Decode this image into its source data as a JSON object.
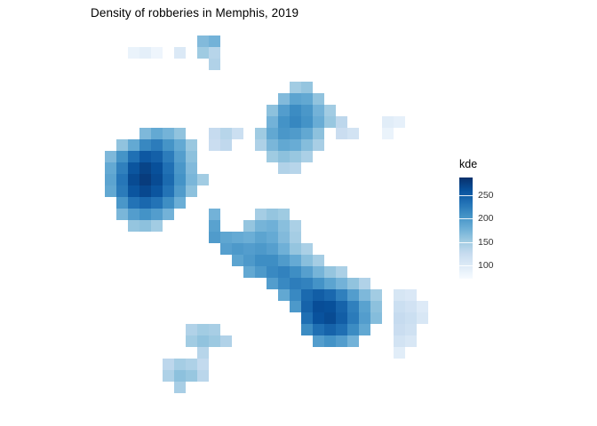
{
  "chart_data": {
    "type": "heatmap",
    "title": "Density of robberies in Memphis, 2019",
    "xlabel": "",
    "ylabel": "",
    "grid": false,
    "background": "#FFFFFF",
    "legend": {
      "title": "kde",
      "position": "right",
      "ticks": [
        250,
        200,
        150,
        100
      ]
    },
    "domain": [
      72,
      288
    ],
    "palette": [
      "#F7FBFF",
      "#DEEBF7",
      "#C6DBEF",
      "#9ECAE1",
      "#6BAED6",
      "#4292C6",
      "#2171B5",
      "#08519C",
      "#08306B"
    ],
    "cell": 13,
    "origin": [
      118,
      40
    ],
    "tiles": [
      [
        8,
        0,
        168
      ],
      [
        9,
        0,
        176
      ],
      [
        2,
        1,
        86
      ],
      [
        3,
        1,
        92
      ],
      [
        4,
        1,
        82
      ],
      [
        6,
        1,
        102
      ],
      [
        8,
        1,
        152
      ],
      [
        9,
        1,
        136
      ],
      [
        9,
        2,
        140
      ],
      [
        16,
        4,
        150
      ],
      [
        17,
        4,
        158
      ],
      [
        15,
        5,
        168
      ],
      [
        16,
        5,
        190
      ],
      [
        17,
        5,
        186
      ],
      [
        18,
        5,
        160
      ],
      [
        14,
        6,
        162
      ],
      [
        15,
        6,
        196
      ],
      [
        16,
        6,
        212
      ],
      [
        17,
        6,
        202
      ],
      [
        18,
        6,
        176
      ],
      [
        19,
        6,
        150
      ],
      [
        14,
        7,
        176
      ],
      [
        15,
        7,
        206
      ],
      [
        16,
        7,
        216
      ],
      [
        17,
        7,
        206
      ],
      [
        18,
        7,
        182
      ],
      [
        19,
        7,
        156
      ],
      [
        20,
        7,
        132
      ],
      [
        13,
        8,
        152
      ],
      [
        14,
        8,
        186
      ],
      [
        15,
        8,
        202
      ],
      [
        16,
        8,
        198
      ],
      [
        17,
        8,
        186
      ],
      [
        18,
        8,
        162
      ],
      [
        20,
        8,
        122
      ],
      [
        21,
        8,
        112
      ],
      [
        13,
        9,
        142
      ],
      [
        14,
        9,
        172
      ],
      [
        15,
        9,
        186
      ],
      [
        16,
        9,
        182
      ],
      [
        17,
        9,
        166
      ],
      [
        18,
        9,
        146
      ],
      [
        14,
        10,
        152
      ],
      [
        15,
        10,
        162
      ],
      [
        16,
        10,
        156
      ],
      [
        17,
        10,
        144
      ],
      [
        15,
        11,
        140
      ],
      [
        16,
        11,
        136
      ],
      [
        24,
        7,
        96
      ],
      [
        25,
        7,
        90
      ],
      [
        24,
        8,
        86
      ],
      [
        9,
        8,
        126
      ],
      [
        10,
        8,
        136
      ],
      [
        11,
        8,
        120
      ],
      [
        9,
        9,
        122
      ],
      [
        10,
        9,
        130
      ],
      [
        3,
        8,
        170
      ],
      [
        4,
        8,
        185
      ],
      [
        5,
        8,
        175
      ],
      [
        6,
        8,
        160
      ],
      [
        1,
        9,
        160
      ],
      [
        2,
        9,
        185
      ],
      [
        3,
        9,
        215
      ],
      [
        4,
        9,
        225
      ],
      [
        5,
        9,
        205
      ],
      [
        6,
        9,
        185
      ],
      [
        7,
        9,
        155
      ],
      [
        0,
        10,
        170
      ],
      [
        1,
        10,
        205
      ],
      [
        2,
        10,
        235
      ],
      [
        3,
        10,
        255
      ],
      [
        4,
        10,
        248
      ],
      [
        5,
        10,
        225
      ],
      [
        6,
        10,
        195
      ],
      [
        7,
        10,
        162
      ],
      [
        0,
        11,
        185
      ],
      [
        1,
        11,
        222
      ],
      [
        2,
        11,
        258
      ],
      [
        3,
        11,
        272
      ],
      [
        4,
        11,
        262
      ],
      [
        5,
        11,
        235
      ],
      [
        6,
        11,
        202
      ],
      [
        7,
        11,
        168
      ],
      [
        0,
        12,
        190
      ],
      [
        1,
        12,
        230
      ],
      [
        2,
        12,
        266
      ],
      [
        3,
        12,
        278
      ],
      [
        4,
        12,
        266
      ],
      [
        5,
        12,
        240
      ],
      [
        6,
        12,
        206
      ],
      [
        7,
        12,
        172
      ],
      [
        8,
        12,
        150
      ],
      [
        0,
        13,
        186
      ],
      [
        1,
        13,
        226
      ],
      [
        2,
        13,
        258
      ],
      [
        3,
        13,
        268
      ],
      [
        4,
        13,
        258
      ],
      [
        5,
        13,
        232
      ],
      [
        6,
        13,
        198
      ],
      [
        7,
        13,
        162
      ],
      [
        1,
        14,
        202
      ],
      [
        2,
        14,
        232
      ],
      [
        3,
        14,
        242
      ],
      [
        4,
        14,
        232
      ],
      [
        5,
        14,
        210
      ],
      [
        6,
        14,
        180
      ],
      [
        1,
        15,
        172
      ],
      [
        2,
        15,
        196
      ],
      [
        3,
        15,
        206
      ],
      [
        4,
        15,
        196
      ],
      [
        5,
        15,
        176
      ],
      [
        2,
        16,
        158
      ],
      [
        3,
        16,
        162
      ],
      [
        4,
        16,
        150
      ],
      [
        9,
        15,
        176
      ],
      [
        9,
        16,
        192
      ],
      [
        9,
        17,
        198
      ],
      [
        10,
        17,
        188
      ],
      [
        13,
        15,
        148
      ],
      [
        14,
        15,
        158
      ],
      [
        15,
        15,
        152
      ],
      [
        12,
        16,
        158
      ],
      [
        13,
        16,
        174
      ],
      [
        14,
        16,
        178
      ],
      [
        15,
        16,
        164
      ],
      [
        16,
        16,
        144
      ],
      [
        11,
        17,
        184
      ],
      [
        12,
        17,
        180
      ],
      [
        13,
        17,
        190
      ],
      [
        14,
        17,
        184
      ],
      [
        15,
        17,
        168
      ],
      [
        16,
        17,
        148
      ],
      [
        10,
        18,
        194
      ],
      [
        11,
        18,
        200
      ],
      [
        12,
        18,
        196
      ],
      [
        13,
        18,
        200
      ],
      [
        14,
        18,
        194
      ],
      [
        15,
        18,
        178
      ],
      [
        16,
        18,
        158
      ],
      [
        17,
        18,
        144
      ],
      [
        11,
        19,
        190
      ],
      [
        12,
        19,
        200
      ],
      [
        13,
        19,
        210
      ],
      [
        14,
        19,
        210
      ],
      [
        15,
        19,
        198
      ],
      [
        16,
        19,
        184
      ],
      [
        17,
        19,
        164
      ],
      [
        18,
        19,
        148
      ],
      [
        12,
        20,
        186
      ],
      [
        13,
        20,
        200
      ],
      [
        14,
        20,
        214
      ],
      [
        15,
        20,
        220
      ],
      [
        16,
        20,
        210
      ],
      [
        17,
        20,
        194
      ],
      [
        18,
        20,
        174
      ],
      [
        19,
        20,
        158
      ],
      [
        20,
        20,
        144
      ],
      [
        14,
        21,
        196
      ],
      [
        15,
        21,
        214
      ],
      [
        16,
        21,
        224
      ],
      [
        17,
        21,
        220
      ],
      [
        18,
        21,
        206
      ],
      [
        19,
        21,
        190
      ],
      [
        20,
        21,
        176
      ],
      [
        21,
        21,
        160
      ],
      [
        22,
        21,
        140
      ],
      [
        15,
        22,
        186
      ],
      [
        16,
        22,
        214
      ],
      [
        17,
        22,
        240
      ],
      [
        18,
        22,
        250
      ],
      [
        19,
        22,
        242
      ],
      [
        20,
        22,
        222
      ],
      [
        21,
        22,
        196
      ],
      [
        22,
        22,
        170
      ],
      [
        23,
        22,
        150
      ],
      [
        16,
        23,
        200
      ],
      [
        17,
        23,
        246
      ],
      [
        18,
        23,
        264
      ],
      [
        19,
        23,
        262
      ],
      [
        20,
        23,
        246
      ],
      [
        21,
        23,
        222
      ],
      [
        22,
        23,
        192
      ],
      [
        23,
        23,
        162
      ],
      [
        17,
        24,
        236
      ],
      [
        18,
        24,
        260
      ],
      [
        19,
        24,
        266
      ],
      [
        20,
        24,
        250
      ],
      [
        21,
        24,
        226
      ],
      [
        22,
        24,
        196
      ],
      [
        23,
        24,
        166
      ],
      [
        17,
        25,
        212
      ],
      [
        18,
        25,
        236
      ],
      [
        19,
        25,
        246
      ],
      [
        20,
        25,
        236
      ],
      [
        21,
        25,
        212
      ],
      [
        22,
        25,
        186
      ],
      [
        18,
        26,
        196
      ],
      [
        19,
        26,
        206
      ],
      [
        20,
        26,
        196
      ],
      [
        21,
        26,
        176
      ],
      [
        25,
        22,
        108
      ],
      [
        26,
        22,
        104
      ],
      [
        25,
        23,
        120
      ],
      [
        26,
        23,
        114
      ],
      [
        27,
        23,
        100
      ],
      [
        25,
        24,
        126
      ],
      [
        26,
        24,
        120
      ],
      [
        27,
        24,
        106
      ],
      [
        25,
        25,
        122
      ],
      [
        26,
        25,
        116
      ],
      [
        25,
        26,
        112
      ],
      [
        26,
        26,
        106
      ],
      [
        25,
        27,
        96
      ],
      [
        7,
        25,
        140
      ],
      [
        8,
        25,
        150
      ],
      [
        9,
        25,
        146
      ],
      [
        7,
        26,
        150
      ],
      [
        8,
        26,
        160
      ],
      [
        9,
        26,
        154
      ],
      [
        10,
        26,
        140
      ],
      [
        8,
        27,
        136
      ],
      [
        5,
        28,
        132
      ],
      [
        6,
        28,
        148
      ],
      [
        7,
        28,
        142
      ],
      [
        8,
        28,
        128
      ],
      [
        5,
        29,
        142
      ],
      [
        6,
        29,
        162
      ],
      [
        7,
        29,
        156
      ],
      [
        8,
        29,
        134
      ],
      [
        6,
        30,
        146
      ]
    ]
  }
}
